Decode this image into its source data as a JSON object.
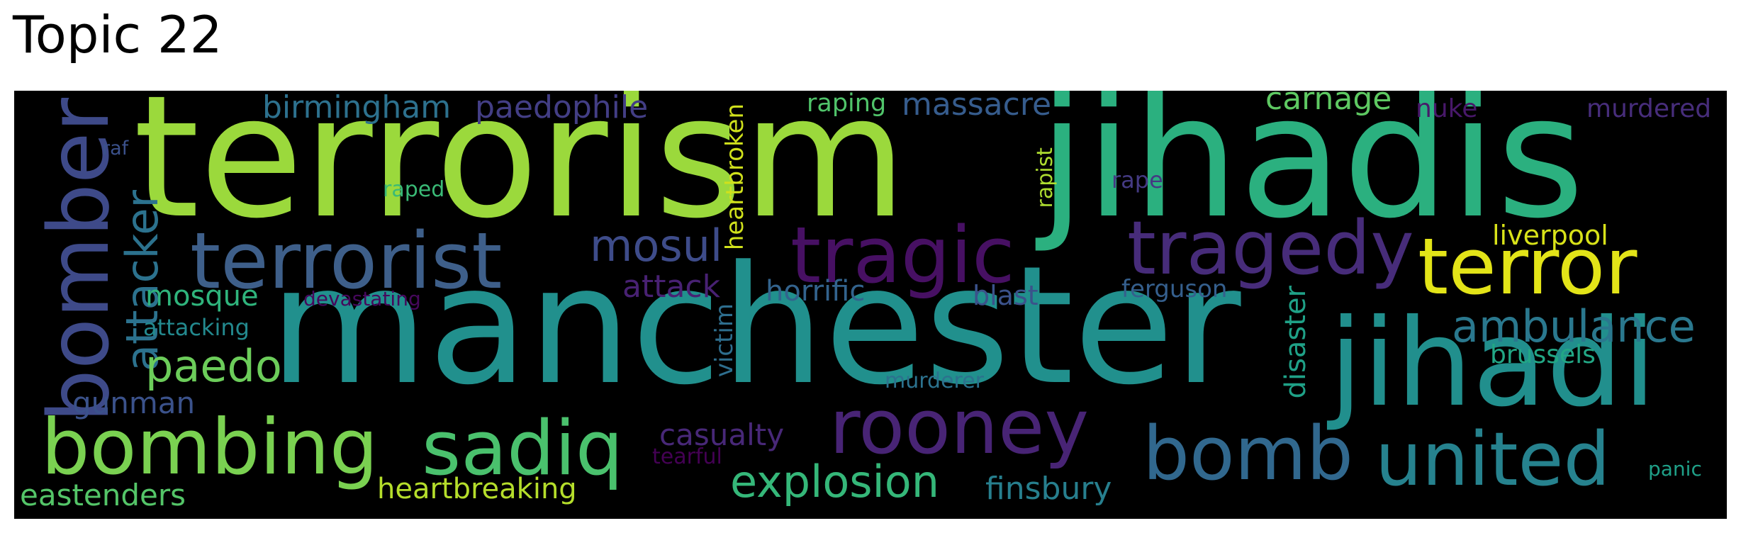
{
  "title": "Topic 22",
  "words": [
    {
      "id": "terrorism",
      "text": "terrorism",
      "color": "#9bd93c"
    },
    {
      "id": "jihadis",
      "text": "jihadis",
      "color": "#2bb07f"
    },
    {
      "id": "manchester",
      "text": "manchester",
      "color": "#21908d"
    },
    {
      "id": "jihadi",
      "text": "jihadi",
      "color": "#218f8d"
    },
    {
      "id": "bomber",
      "text": "bomber",
      "color": "#3e4a89"
    },
    {
      "id": "terrorist",
      "text": "terrorist",
      "color": "#3e5f8a"
    },
    {
      "id": "tragic",
      "text": "tragic",
      "color": "#471063"
    },
    {
      "id": "tragedy",
      "text": "tragedy",
      "color": "#472c7a"
    },
    {
      "id": "terror",
      "text": "terror",
      "color": "#e3e418"
    },
    {
      "id": "bombing",
      "text": "bombing",
      "color": "#7ad151"
    },
    {
      "id": "sadiq",
      "text": "sadiq",
      "color": "#4ac16d"
    },
    {
      "id": "rooney",
      "text": "rooney",
      "color": "#482475"
    },
    {
      "id": "bomb",
      "text": "bomb",
      "color": "#31688e"
    },
    {
      "id": "united",
      "text": "united",
      "color": "#26828e"
    },
    {
      "id": "explosion",
      "text": "explosion",
      "color": "#35b779"
    },
    {
      "id": "attacker",
      "text": "attacker",
      "color": "#2c728e"
    },
    {
      "id": "mosul",
      "text": "mosul",
      "color": "#3e4c8a"
    },
    {
      "id": "ambulance",
      "text": "ambulance",
      "color": "#2a788e"
    },
    {
      "id": "paedo",
      "text": "paedo",
      "color": "#6ccd5a"
    },
    {
      "id": "birmingham",
      "text": "birmingham",
      "color": "#2d718e"
    },
    {
      "id": "paedophile",
      "text": "paedophile",
      "color": "#433e85"
    },
    {
      "id": "massacre",
      "text": "massacre",
      "color": "#365c8d"
    },
    {
      "id": "carnage",
      "text": "carnage",
      "color": "#5ec962"
    },
    {
      "id": "heartbroken",
      "text": "heartbroken",
      "color": "#d0e11c"
    },
    {
      "id": "raping",
      "text": "raping",
      "color": "#50c46a"
    },
    {
      "id": "nuke",
      "text": "nuke",
      "color": "#48186a"
    },
    {
      "id": "murdered",
      "text": "murdered",
      "color": "#472d7b"
    },
    {
      "id": "raf",
      "text": "raf",
      "color": "#3b518b"
    },
    {
      "id": "raped",
      "text": "raped",
      "color": "#3aba76"
    },
    {
      "id": "rapist",
      "text": "rapist",
      "color": "#addc30"
    },
    {
      "id": "rape",
      "text": "rape",
      "color": "#443a83"
    },
    {
      "id": "liverpool",
      "text": "liverpool",
      "color": "#d8e219"
    },
    {
      "id": "attack",
      "text": "attack",
      "color": "#482173"
    },
    {
      "id": "horrific",
      "text": "horrific",
      "color": "#33638d"
    },
    {
      "id": "blast",
      "text": "blast",
      "color": "#3b528b"
    },
    {
      "id": "ferguson",
      "text": "ferguson",
      "color": "#355f8d"
    },
    {
      "id": "mosque",
      "text": "mosque",
      "color": "#2fb47c"
    },
    {
      "id": "devastating",
      "text": "devastating",
      "color": "#46085c"
    },
    {
      "id": "attacking",
      "text": "attacking",
      "color": "#23898e"
    },
    {
      "id": "victim",
      "text": "victim",
      "color": "#2e6e8e"
    },
    {
      "id": "disaster",
      "text": "disaster",
      "color": "#1fa187"
    },
    {
      "id": "brussels",
      "text": "brussels",
      "color": "#22a785"
    },
    {
      "id": "gunman",
      "text": "gunman",
      "color": "#3b528b"
    },
    {
      "id": "murderer",
      "text": "murderer",
      "color": "#2c728e"
    },
    {
      "id": "casualty",
      "text": "casualty",
      "color": "#482878"
    },
    {
      "id": "tearful",
      "text": "tearful",
      "color": "#440154"
    },
    {
      "id": "heartbreaking",
      "text": "heartbreaking",
      "color": "#b5de2b"
    },
    {
      "id": "finsbury",
      "text": "finsbury",
      "color": "#277f8e"
    },
    {
      "id": "eastenders",
      "text": "eastenders",
      "color": "#54c568"
    },
    {
      "id": "panic",
      "text": "panic",
      "color": "#1fa088"
    }
  ]
}
